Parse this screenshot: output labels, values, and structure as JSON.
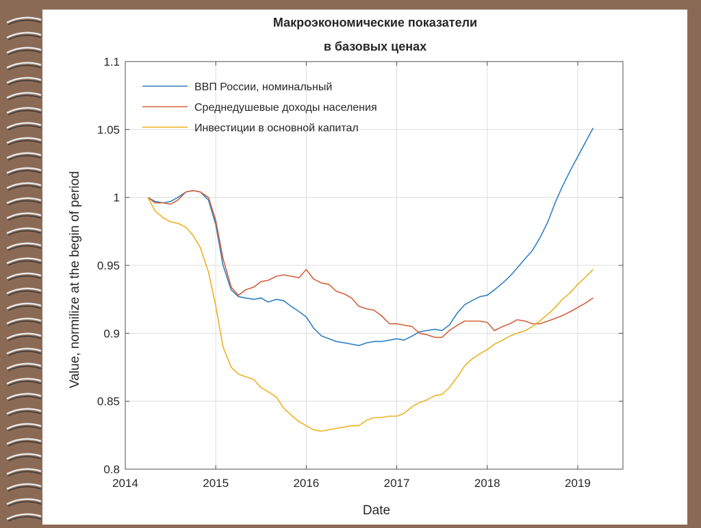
{
  "colors": {
    "frame": "#8b6a55",
    "paper": "#ffffff",
    "gdp": "#2f7fc1",
    "income": "#d1603a",
    "investment": "#edb120",
    "grid": "#dddddd",
    "axis": "#4d4d4d"
  },
  "decorations": {
    "binding": "spiral-binding-icon"
  },
  "chart_data": {
    "type": "line",
    "title": "Макроэкономические показатели\nв базовых ценах",
    "title_lines": [
      "Макроэкономические показатели",
      "в базовых ценах"
    ],
    "xlabel": "Date",
    "ylabel": "Value, normilize at the begin of period",
    "xlim": [
      2014.0,
      2019.5
    ],
    "ylim": [
      0.8,
      1.1
    ],
    "x_ticks": [
      2014,
      2015,
      2016,
      2017,
      2018,
      2019
    ],
    "x_tick_labels": [
      "2014",
      "2015",
      "2016",
      "2017",
      "2018",
      "2019"
    ],
    "y_ticks": [
      0.8,
      0.85,
      0.9,
      0.95,
      1.0,
      1.05,
      1.1
    ],
    "y_tick_labels": [
      "0.8",
      "0.85",
      "0.9",
      "0.95",
      "1",
      "1.05",
      "1.1"
    ],
    "grid": true,
    "legend_position": "top-left",
    "series": [
      {
        "name": "ВВП России, номинальный",
        "color": "#2f7fc1",
        "points": [
          [
            2014.25,
            1.0
          ],
          [
            2014.33,
            0.997
          ],
          [
            2014.42,
            0.996
          ],
          [
            2014.5,
            0.997
          ],
          [
            2014.58,
            1.0
          ],
          [
            2014.67,
            1.004
          ],
          [
            2014.75,
            1.005
          ],
          [
            2014.83,
            1.004
          ],
          [
            2014.92,
            0.998
          ],
          [
            2015.0,
            0.98
          ],
          [
            2015.08,
            0.95
          ],
          [
            2015.17,
            0.932
          ],
          [
            2015.25,
            0.927
          ],
          [
            2015.33,
            0.926
          ],
          [
            2015.42,
            0.925
          ],
          [
            2015.5,
            0.926
          ],
          [
            2015.58,
            0.923
          ],
          [
            2015.67,
            0.925
          ],
          [
            2015.75,
            0.924
          ],
          [
            2015.83,
            0.92
          ],
          [
            2015.92,
            0.916
          ],
          [
            2016.0,
            0.912
          ],
          [
            2016.08,
            0.904
          ],
          [
            2016.17,
            0.898
          ],
          [
            2016.25,
            0.896
          ],
          [
            2016.33,
            0.894
          ],
          [
            2016.42,
            0.893
          ],
          [
            2016.5,
            0.892
          ],
          [
            2016.58,
            0.891
          ],
          [
            2016.67,
            0.893
          ],
          [
            2016.75,
            0.894
          ],
          [
            2016.83,
            0.894
          ],
          [
            2016.92,
            0.895
          ],
          [
            2017.0,
            0.896
          ],
          [
            2017.08,
            0.895
          ],
          [
            2017.17,
            0.898
          ],
          [
            2017.25,
            0.901
          ],
          [
            2017.33,
            0.902
          ],
          [
            2017.42,
            0.903
          ],
          [
            2017.5,
            0.902
          ],
          [
            2017.58,
            0.906
          ],
          [
            2017.67,
            0.915
          ],
          [
            2017.75,
            0.921
          ],
          [
            2017.83,
            0.924
          ],
          [
            2017.92,
            0.927
          ],
          [
            2018.0,
            0.928
          ],
          [
            2018.08,
            0.932
          ],
          [
            2018.17,
            0.937
          ],
          [
            2018.25,
            0.942
          ],
          [
            2018.33,
            0.948
          ],
          [
            2018.42,
            0.955
          ],
          [
            2018.5,
            0.961
          ],
          [
            2018.58,
            0.97
          ],
          [
            2018.67,
            0.982
          ],
          [
            2018.75,
            0.996
          ],
          [
            2018.83,
            1.008
          ],
          [
            2018.92,
            1.02
          ],
          [
            2019.0,
            1.03
          ],
          [
            2019.08,
            1.04
          ],
          [
            2019.17,
            1.051
          ]
        ]
      },
      {
        "name": "Среднедушевые доходы населения",
        "color": "#d1603a",
        "points": [
          [
            2014.25,
            1.0
          ],
          [
            2014.33,
            0.996
          ],
          [
            2014.42,
            0.996
          ],
          [
            2014.5,
            0.995
          ],
          [
            2014.58,
            0.998
          ],
          [
            2014.67,
            1.004
          ],
          [
            2014.75,
            1.005
          ],
          [
            2014.83,
            1.004
          ],
          [
            2014.92,
            1.0
          ],
          [
            2015.0,
            0.983
          ],
          [
            2015.08,
            0.955
          ],
          [
            2015.17,
            0.934
          ],
          [
            2015.25,
            0.928
          ],
          [
            2015.33,
            0.932
          ],
          [
            2015.42,
            0.934
          ],
          [
            2015.5,
            0.938
          ],
          [
            2015.58,
            0.939
          ],
          [
            2015.67,
            0.942
          ],
          [
            2015.75,
            0.943
          ],
          [
            2015.83,
            0.942
          ],
          [
            2015.92,
            0.941
          ],
          [
            2016.0,
            0.947
          ],
          [
            2016.08,
            0.94
          ],
          [
            2016.17,
            0.937
          ],
          [
            2016.25,
            0.936
          ],
          [
            2016.33,
            0.931
          ],
          [
            2016.42,
            0.929
          ],
          [
            2016.5,
            0.926
          ],
          [
            2016.58,
            0.92
          ],
          [
            2016.67,
            0.918
          ],
          [
            2016.75,
            0.917
          ],
          [
            2016.83,
            0.913
          ],
          [
            2016.92,
            0.907
          ],
          [
            2017.0,
            0.907
          ],
          [
            2017.08,
            0.906
          ],
          [
            2017.17,
            0.905
          ],
          [
            2017.25,
            0.9
          ],
          [
            2017.33,
            0.899
          ],
          [
            2017.42,
            0.897
          ],
          [
            2017.5,
            0.897
          ],
          [
            2017.58,
            0.902
          ],
          [
            2017.67,
            0.906
          ],
          [
            2017.75,
            0.909
          ],
          [
            2017.83,
            0.909
          ],
          [
            2017.92,
            0.909
          ],
          [
            2018.0,
            0.908
          ],
          [
            2018.08,
            0.902
          ],
          [
            2018.17,
            0.905
          ],
          [
            2018.25,
            0.907
          ],
          [
            2018.33,
            0.91
          ],
          [
            2018.42,
            0.909
          ],
          [
            2018.5,
            0.907
          ],
          [
            2018.58,
            0.907
          ],
          [
            2018.67,
            0.909
          ],
          [
            2018.75,
            0.911
          ],
          [
            2018.83,
            0.913
          ],
          [
            2018.92,
            0.916
          ],
          [
            2019.0,
            0.919
          ],
          [
            2019.08,
            0.922
          ],
          [
            2019.17,
            0.926
          ]
        ]
      },
      {
        "name": "Инвестиции в основной капитал",
        "color": "#edb120",
        "points": [
          [
            2014.25,
            1.0
          ],
          [
            2014.33,
            0.99
          ],
          [
            2014.42,
            0.985
          ],
          [
            2014.5,
            0.982
          ],
          [
            2014.58,
            0.981
          ],
          [
            2014.67,
            0.978
          ],
          [
            2014.75,
            0.972
          ],
          [
            2014.83,
            0.963
          ],
          [
            2014.92,
            0.945
          ],
          [
            2015.0,
            0.92
          ],
          [
            2015.08,
            0.89
          ],
          [
            2015.17,
            0.875
          ],
          [
            2015.25,
            0.87
          ],
          [
            2015.33,
            0.868
          ],
          [
            2015.42,
            0.866
          ],
          [
            2015.5,
            0.86
          ],
          [
            2015.58,
            0.857
          ],
          [
            2015.67,
            0.853
          ],
          [
            2015.75,
            0.845
          ],
          [
            2015.83,
            0.84
          ],
          [
            2015.92,
            0.835
          ],
          [
            2016.0,
            0.832
          ],
          [
            2016.08,
            0.829
          ],
          [
            2016.17,
            0.828
          ],
          [
            2016.25,
            0.829
          ],
          [
            2016.33,
            0.83
          ],
          [
            2016.42,
            0.831
          ],
          [
            2016.5,
            0.832
          ],
          [
            2016.58,
            0.832
          ],
          [
            2016.67,
            0.836
          ],
          [
            2016.75,
            0.838
          ],
          [
            2016.83,
            0.838
          ],
          [
            2016.92,
            0.839
          ],
          [
            2017.0,
            0.839
          ],
          [
            2017.08,
            0.841
          ],
          [
            2017.17,
            0.846
          ],
          [
            2017.25,
            0.849
          ],
          [
            2017.33,
            0.851
          ],
          [
            2017.42,
            0.854
          ],
          [
            2017.5,
            0.855
          ],
          [
            2017.58,
            0.86
          ],
          [
            2017.67,
            0.868
          ],
          [
            2017.75,
            0.876
          ],
          [
            2017.83,
            0.881
          ],
          [
            2017.92,
            0.885
          ],
          [
            2018.0,
            0.888
          ],
          [
            2018.08,
            0.892
          ],
          [
            2018.17,
            0.895
          ],
          [
            2018.25,
            0.898
          ],
          [
            2018.33,
            0.9
          ],
          [
            2018.42,
            0.902
          ],
          [
            2018.5,
            0.905
          ],
          [
            2018.58,
            0.909
          ],
          [
            2018.67,
            0.914
          ],
          [
            2018.75,
            0.919
          ],
          [
            2018.83,
            0.925
          ],
          [
            2018.92,
            0.93
          ],
          [
            2019.0,
            0.936
          ],
          [
            2019.08,
            0.941
          ],
          [
            2019.17,
            0.947
          ]
        ]
      }
    ]
  }
}
